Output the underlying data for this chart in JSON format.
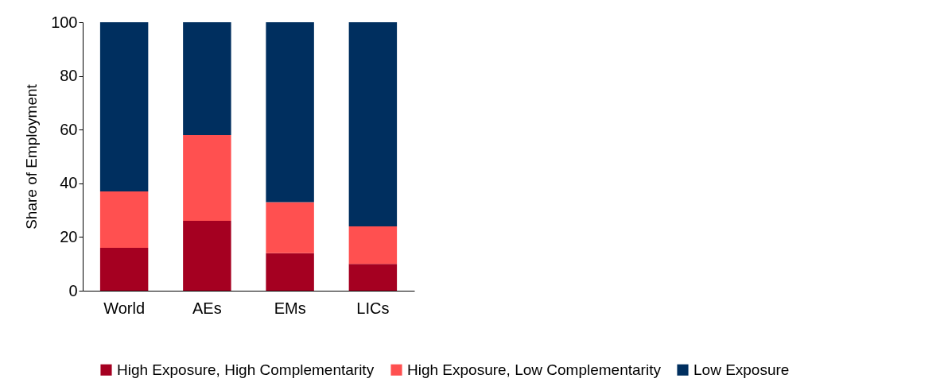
{
  "chart_data": {
    "type": "bar",
    "stacked": true,
    "ylabel": "Share of Employment",
    "categories": [
      "World",
      "AEs",
      "EMs",
      "LICs"
    ],
    "series": [
      {
        "name": "High Exposure, High Complementarity",
        "color": "#a50021",
        "values": [
          16,
          26,
          14,
          10
        ]
      },
      {
        "name": "High Exposure, Low Complementarity",
        "color": "#ff5050",
        "values": [
          21,
          32,
          19,
          14
        ]
      },
      {
        "name": "Low Exposure",
        "color": "#002f5f",
        "values": [
          63,
          42,
          67,
          76
        ]
      }
    ],
    "ylim": [
      0,
      100
    ],
    "yticks": [
      0,
      20,
      40,
      60,
      80,
      100
    ],
    "grid": false,
    "legend": "bottom"
  }
}
